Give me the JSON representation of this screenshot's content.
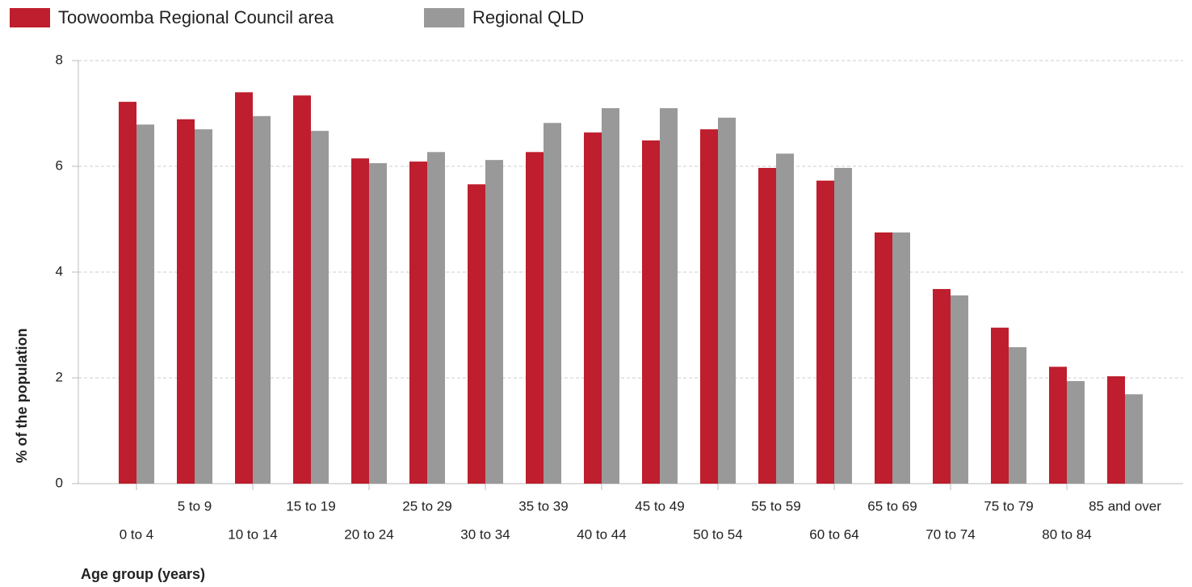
{
  "chart_data": {
    "type": "bar",
    "x_label": "Age group (years)",
    "y_label": "% of the population",
    "categories": [
      "0 to 4",
      "5 to 9",
      "10 to 14",
      "15 to 19",
      "20 to 24",
      "25 to 29",
      "30 to 34",
      "35 to 39",
      "40 to 44",
      "45 to 49",
      "50 to 54",
      "55 to 59",
      "60 to 64",
      "65 to 69",
      "70 to 74",
      "75 to 79",
      "80 to 84",
      "85 and over"
    ],
    "series": [
      {
        "name": "Toowoomba Regional Council area",
        "color": "#be1e2d",
        "values": [
          7.22,
          6.89,
          7.4,
          7.34,
          6.15,
          6.09,
          5.66,
          6.27,
          6.64,
          6.49,
          6.7,
          5.97,
          5.73,
          4.75,
          3.68,
          2.95,
          2.21,
          2.03
        ]
      },
      {
        "name": "Regional QLD",
        "color": "#999999",
        "values": [
          6.79,
          6.7,
          6.95,
          6.67,
          6.06,
          6.27,
          6.12,
          6.82,
          7.1,
          7.1,
          6.92,
          6.24,
          5.97,
          4.75,
          3.56,
          2.58,
          1.94,
          1.69
        ]
      }
    ],
    "ylim": [
      0,
      8
    ],
    "yticks": [
      0,
      2,
      4,
      6,
      8
    ],
    "grid": true,
    "legend": "top-left"
  }
}
